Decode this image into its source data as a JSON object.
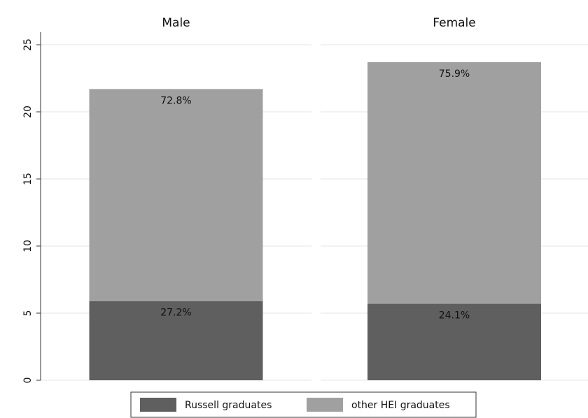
{
  "chart_data": {
    "type": "bar",
    "stacked": true,
    "categories": [
      "Male",
      "Female"
    ],
    "series": [
      {
        "name": "Russell graduates",
        "color": "#5f5f5f",
        "values": [
          5.9,
          5.7
        ],
        "value_labels": [
          "27.2%",
          "24.1%"
        ]
      },
      {
        "name": "other HEI graduates",
        "color": "#a0a0a0",
        "values": [
          15.8,
          18.0
        ],
        "value_labels": [
          "72.8%",
          "75.9%"
        ]
      }
    ],
    "ylim": [
      0,
      25
    ],
    "yticks": [
      0,
      5,
      10,
      15,
      20,
      25
    ],
    "grid": true,
    "legend": "bottom"
  }
}
